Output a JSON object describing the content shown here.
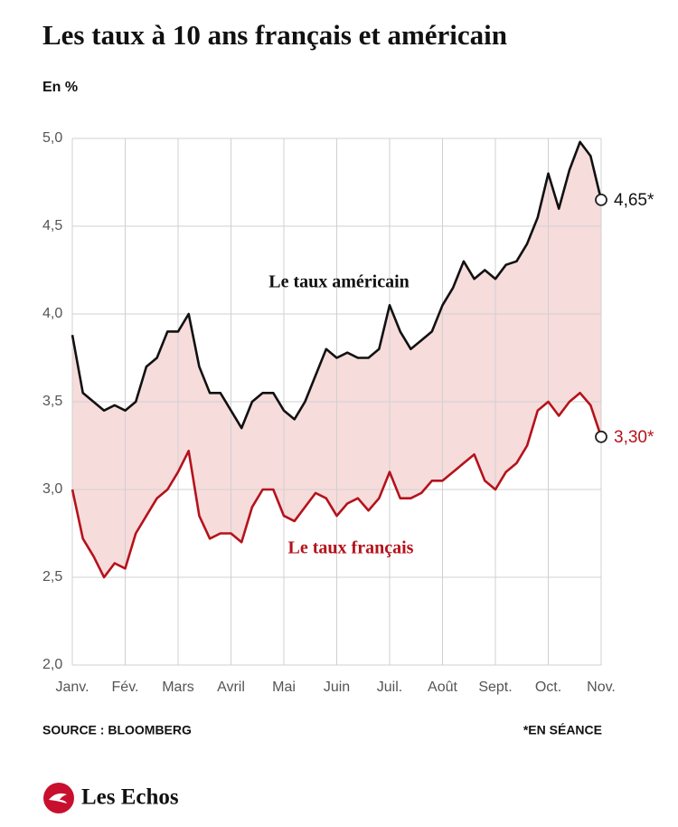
{
  "chart_data": {
    "type": "line",
    "title": "Les taux à 10 ans français et américain",
    "subtitle": "En %",
    "source": "SOURCE : BLOOMBERG",
    "note": "*EN SÉANCE",
    "logo": "Les Echos",
    "categories": [
      "Janv.",
      null,
      null,
      null,
      null,
      "Fév.",
      null,
      null,
      null,
      null,
      "Mars",
      null,
      null,
      null,
      null,
      "Avril",
      null,
      null,
      null,
      null,
      "Mai",
      null,
      null,
      null,
      null,
      "Juin",
      null,
      null,
      null,
      null,
      "Juil.",
      null,
      null,
      null,
      null,
      "Août",
      null,
      null,
      null,
      null,
      "Sept.",
      null,
      null,
      null,
      null,
      "Oct.",
      null,
      null,
      null,
      null,
      "Nov."
    ],
    "ylim": [
      2.0,
      5.0
    ],
    "yticks": [
      {
        "value": 2.0,
        "label": "2,0"
      },
      {
        "value": 2.5,
        "label": "2,5"
      },
      {
        "value": 3.0,
        "label": "3,0"
      },
      {
        "value": 3.5,
        "label": "3,5"
      },
      {
        "value": 4.0,
        "label": "4,0"
      },
      {
        "value": 4.5,
        "label": "4,5"
      },
      {
        "value": 5.0,
        "label": "5,0"
      }
    ],
    "grid": true,
    "fill_between": "#f7dcdc",
    "series": [
      {
        "name": "Le taux américain",
        "color": "#111111",
        "values": [
          3.88,
          3.55,
          3.5,
          3.45,
          3.48,
          3.45,
          3.5,
          3.7,
          3.75,
          3.9,
          3.9,
          4.0,
          3.7,
          3.55,
          3.55,
          3.45,
          3.35,
          3.5,
          3.55,
          3.55,
          3.45,
          3.4,
          3.5,
          3.65,
          3.8,
          3.75,
          3.78,
          3.75,
          3.75,
          3.8,
          4.05,
          3.9,
          3.8,
          3.85,
          3.9,
          4.05,
          4.15,
          4.3,
          4.2,
          4.25,
          4.2,
          4.28,
          4.3,
          4.4,
          4.55,
          4.8,
          4.6,
          4.82,
          4.98,
          4.9,
          4.65
        ],
        "value_labels": [
          null,
          null,
          null,
          null,
          null,
          null,
          null,
          null,
          null,
          null,
          null,
          null,
          null,
          null,
          null,
          null,
          null,
          null,
          null,
          null,
          null,
          null,
          null,
          null,
          null,
          null,
          null,
          null,
          null,
          null,
          null,
          null,
          null,
          null,
          null,
          null,
          null,
          null,
          null,
          null,
          null,
          null,
          null,
          null,
          null,
          null,
          null,
          null,
          null,
          null,
          "4,65*"
        ]
      },
      {
        "name": "Le taux français",
        "color": "#b5121b",
        "values": [
          3.0,
          2.72,
          2.62,
          2.5,
          2.58,
          2.55,
          2.75,
          2.85,
          2.95,
          3.0,
          3.1,
          3.22,
          2.85,
          2.72,
          2.75,
          2.75,
          2.7,
          2.9,
          3.0,
          3.0,
          2.85,
          2.82,
          2.9,
          2.98,
          2.95,
          2.85,
          2.92,
          2.95,
          2.88,
          2.95,
          3.1,
          2.95,
          2.95,
          2.98,
          3.05,
          3.05,
          3.1,
          3.15,
          3.2,
          3.05,
          3.0,
          3.1,
          3.15,
          3.25,
          3.45,
          3.5,
          3.42,
          3.5,
          3.55,
          3.48,
          3.3
        ],
        "value_labels": [
          null,
          null,
          null,
          null,
          null,
          null,
          null,
          null,
          null,
          null,
          null,
          null,
          null,
          null,
          null,
          null,
          null,
          null,
          null,
          null,
          null,
          null,
          null,
          null,
          null,
          null,
          null,
          null,
          null,
          null,
          null,
          null,
          null,
          null,
          null,
          null,
          null,
          null,
          null,
          null,
          null,
          null,
          null,
          null,
          null,
          null,
          null,
          null,
          null,
          null,
          "3,30*"
        ]
      }
    ]
  }
}
